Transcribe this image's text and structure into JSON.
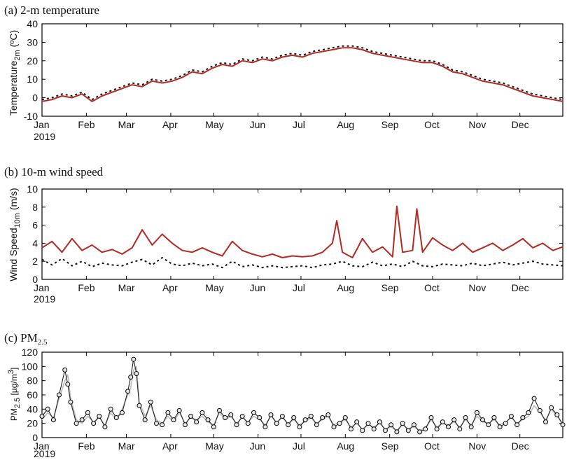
{
  "panels": [
    {
      "title": "(a) 2-m temperature",
      "ylabel_main": "Temperature",
      "ylabel_sub": "2m",
      "ylabel_unit": " (ºC)",
      "year_label": "2019"
    },
    {
      "title": "(b) 10-m wind speed",
      "ylabel_main": "Wind Speed",
      "ylabel_sub": "10m",
      "ylabel_unit": " (m/s)",
      "year_label": "2019"
    },
    {
      "title_main": "(c) PM",
      "title_sub": "2.5",
      "ylabel_main": "PM",
      "ylabel_sub": "2.5",
      "ylabel_unit": " [µg/m",
      "ylabel_sup": "3",
      "ylabel_close": "]",
      "year_label": "2019"
    }
  ],
  "colors": {
    "model_red": "#b22a22",
    "obs_dots": "#111111",
    "model_gray": "#bbbbbb",
    "obs_circle_fill": "#e6e6e6"
  },
  "chart_data": [
    {
      "type": "line",
      "x_unit": "day of year 2019",
      "month_ticks": [
        "Jan",
        "Feb",
        "Mar",
        "Apr",
        "May",
        "Jun",
        "Jul",
        "Aug",
        "Sep",
        "Oct",
        "Nov",
        "Dec"
      ],
      "month_start_days": [
        1,
        32,
        60,
        91,
        121,
        152,
        182,
        213,
        244,
        274,
        305,
        335
      ],
      "ylim": [
        -10,
        40
      ],
      "yticks": [
        "-10",
        "0",
        "10",
        "20",
        "30",
        "40"
      ],
      "series": [
        {
          "style": "red-line",
          "x": [
            1,
            8,
            15,
            22,
            29,
            36,
            43,
            50,
            57,
            64,
            71,
            78,
            85,
            92,
            99,
            106,
            113,
            120,
            127,
            134,
            141,
            148,
            155,
            162,
            169,
            176,
            183,
            190,
            197,
            204,
            211,
            218,
            225,
            232,
            239,
            246,
            253,
            260,
            267,
            274,
            281,
            288,
            295,
            302,
            309,
            316,
            323,
            330,
            337,
            344,
            351,
            358,
            365
          ],
          "values": [
            -2,
            -1,
            1,
            0,
            2,
            -2,
            1,
            3,
            5,
            7,
            6,
            9,
            8,
            9,
            11,
            14,
            13,
            16,
            18,
            17,
            20,
            19,
            21,
            20,
            22,
            23,
            22,
            24,
            25,
            26,
            27,
            27,
            26,
            24,
            23,
            22,
            21,
            20,
            19,
            19,
            17,
            14,
            13,
            11,
            9,
            8,
            7,
            5,
            3,
            1,
            0,
            -1,
            -2
          ]
        },
        {
          "style": "black-dots",
          "x": [
            1,
            8,
            15,
            22,
            29,
            36,
            43,
            50,
            57,
            64,
            71,
            78,
            85,
            92,
            99,
            106,
            113,
            120,
            127,
            134,
            141,
            148,
            155,
            162,
            169,
            176,
            183,
            190,
            197,
            204,
            211,
            218,
            225,
            232,
            239,
            246,
            253,
            260,
            267,
            274,
            281,
            288,
            295,
            302,
            309,
            316,
            323,
            330,
            337,
            344,
            351,
            358,
            365
          ],
          "values": [
            -1,
            0,
            2,
            1,
            3,
            -1,
            2,
            4,
            6,
            8,
            7,
            10,
            9,
            10,
            12,
            15,
            14,
            17,
            19,
            18,
            21,
            20,
            22,
            21,
            23,
            24,
            23,
            25,
            26,
            27,
            28,
            28,
            27,
            25,
            24,
            23,
            22,
            21,
            20,
            20,
            18,
            15,
            14,
            12,
            10,
            9,
            8,
            6,
            4,
            2,
            1,
            0,
            -1
          ]
        }
      ]
    },
    {
      "type": "line",
      "x_unit": "day of year 2019",
      "month_ticks": [
        "Jan",
        "Feb",
        "Mar",
        "Apr",
        "May",
        "Jun",
        "Jul",
        "Aug",
        "Sep",
        "Oct",
        "Nov",
        "Dec"
      ],
      "month_start_days": [
        1,
        32,
        60,
        91,
        121,
        152,
        182,
        213,
        244,
        274,
        305,
        335
      ],
      "ylim": [
        0,
        10
      ],
      "yticks": [
        "0",
        "2",
        "4",
        "6",
        "8",
        "10"
      ],
      "series": [
        {
          "style": "red-line",
          "x": [
            1,
            8,
            15,
            22,
            29,
            36,
            43,
            50,
            57,
            64,
            71,
            78,
            85,
            92,
            99,
            106,
            113,
            120,
            127,
            134,
            141,
            148,
            155,
            162,
            169,
            176,
            183,
            190,
            197,
            204,
            207,
            211,
            218,
            225,
            232,
            239,
            246,
            249,
            253,
            260,
            263,
            267,
            274,
            281,
            288,
            295,
            302,
            309,
            316,
            323,
            330,
            337,
            344,
            351,
            358,
            365
          ],
          "values": [
            3.5,
            4.2,
            3.0,
            4.5,
            3.2,
            3.8,
            3.0,
            3.3,
            2.8,
            3.5,
            5.5,
            3.8,
            5.0,
            4.0,
            3.2,
            3.0,
            3.5,
            3.0,
            2.6,
            4.2,
            3.2,
            2.8,
            2.5,
            2.8,
            2.4,
            2.6,
            2.5,
            2.6,
            3.0,
            4.0,
            6.5,
            3.0,
            2.4,
            4.5,
            3.0,
            3.6,
            2.5,
            8.1,
            3.0,
            3.2,
            7.8,
            3.0,
            4.6,
            3.8,
            3.2,
            4.0,
            3.0,
            3.5,
            4.0,
            3.2,
            3.8,
            4.5,
            3.5,
            4.0,
            3.2,
            3.6
          ]
        },
        {
          "style": "black-dots",
          "x": [
            1,
            8,
            15,
            22,
            29,
            36,
            43,
            50,
            57,
            64,
            71,
            78,
            85,
            92,
            99,
            106,
            113,
            120,
            127,
            134,
            141,
            148,
            155,
            162,
            169,
            176,
            183,
            190,
            197,
            204,
            211,
            218,
            225,
            232,
            239,
            246,
            253,
            260,
            267,
            274,
            281,
            288,
            295,
            302,
            309,
            316,
            323,
            330,
            337,
            344,
            351,
            358,
            365
          ],
          "values": [
            2.2,
            1.6,
            2.3,
            1.5,
            2.0,
            1.4,
            1.8,
            1.6,
            1.5,
            1.9,
            2.2,
            1.6,
            2.4,
            1.7,
            1.5,
            1.8,
            1.5,
            1.7,
            1.3,
            2.0,
            1.4,
            1.6,
            1.3,
            1.5,
            1.3,
            1.4,
            1.5,
            1.3,
            1.6,
            1.7,
            2.0,
            1.5,
            1.4,
            1.9,
            1.5,
            1.7,
            1.4,
            2.0,
            1.5,
            1.4,
            1.7,
            1.6,
            1.5,
            1.8,
            1.5,
            1.7,
            1.9,
            1.6,
            1.8,
            2.0,
            1.7,
            1.6,
            1.5
          ]
        }
      ]
    },
    {
      "type": "line",
      "x_unit": "day of year 2019",
      "month_ticks": [
        "Jan",
        "Feb",
        "Mar",
        "Apr",
        "May",
        "Jun",
        "Jul",
        "Aug",
        "Sep",
        "Oct",
        "Nov",
        "Dec"
      ],
      "month_start_days": [
        1,
        32,
        60,
        91,
        121,
        152,
        182,
        213,
        244,
        274,
        305,
        335
      ],
      "ylim": [
        0,
        120
      ],
      "yticks": [
        "0",
        "20",
        "40",
        "60",
        "80",
        "100",
        "120"
      ],
      "series": [
        {
          "style": "gray-line",
          "x": [
            1,
            5,
            9,
            13,
            17,
            19,
            21,
            25,
            29,
            33,
            37,
            41,
            45,
            49,
            53,
            57,
            61,
            63,
            65,
            67,
            69,
            73,
            77,
            81,
            85,
            89,
            93,
            97,
            101,
            105,
            109,
            113,
            117,
            121,
            125,
            129,
            133,
            137,
            141,
            145,
            149,
            153,
            157,
            161,
            165,
            169,
            173,
            177,
            181,
            185,
            189,
            193,
            197,
            201,
            205,
            209,
            213,
            217,
            221,
            225,
            229,
            233,
            237,
            241,
            245,
            249,
            253,
            257,
            261,
            265,
            269,
            273,
            277,
            281,
            285,
            289,
            293,
            297,
            301,
            305,
            309,
            313,
            317,
            321,
            325,
            329,
            333,
            337,
            341,
            345,
            349,
            353,
            357,
            361,
            365
          ],
          "values": [
            25,
            35,
            28,
            55,
            80,
            88,
            55,
            25,
            20,
            30,
            22,
            28,
            18,
            35,
            25,
            40,
            60,
            70,
            95,
            100,
            50,
            30,
            45,
            25,
            20,
            30,
            22,
            35,
            20,
            28,
            25,
            30,
            22,
            18,
            35,
            25,
            30,
            20,
            28,
            22,
            30,
            25,
            18,
            30,
            22,
            28,
            20,
            25,
            18,
            22,
            28,
            20,
            25,
            30,
            18,
            22,
            25,
            15,
            20,
            12,
            18,
            15,
            20,
            12,
            15,
            10,
            18,
            12,
            15,
            10,
            14,
            25,
            15,
            20,
            18,
            22,
            15,
            25,
            18,
            30,
            22,
            20,
            25,
            18,
            22,
            28,
            20,
            25,
            30,
            45,
            35,
            25,
            40,
            30,
            20
          ]
        },
        {
          "style": "circle-line",
          "x": [
            1,
            5,
            9,
            13,
            17,
            19,
            21,
            25,
            29,
            33,
            37,
            41,
            45,
            49,
            53,
            57,
            61,
            63,
            65,
            67,
            69,
            73,
            77,
            81,
            85,
            89,
            93,
            97,
            101,
            105,
            109,
            113,
            117,
            121,
            125,
            129,
            133,
            137,
            141,
            145,
            149,
            153,
            157,
            161,
            165,
            169,
            173,
            177,
            181,
            185,
            189,
            193,
            197,
            201,
            205,
            209,
            213,
            217,
            221,
            225,
            229,
            233,
            237,
            241,
            245,
            249,
            253,
            257,
            261,
            265,
            269,
            273,
            277,
            281,
            285,
            289,
            293,
            297,
            301,
            305,
            309,
            313,
            317,
            321,
            325,
            329,
            333,
            337,
            341,
            345,
            349,
            353,
            357,
            361,
            365
          ],
          "values": [
            30,
            40,
            25,
            60,
            95,
            75,
            50,
            20,
            25,
            35,
            20,
            30,
            15,
            40,
            28,
            35,
            65,
            85,
            110,
            90,
            45,
            25,
            50,
            20,
            18,
            35,
            25,
            38,
            18,
            30,
            22,
            35,
            25,
            15,
            38,
            28,
            32,
            18,
            30,
            20,
            35,
            28,
            15,
            32,
            20,
            30,
            18,
            28,
            15,
            25,
            30,
            18,
            28,
            32,
            15,
            20,
            28,
            12,
            22,
            10,
            20,
            12,
            22,
            10,
            18,
            8,
            20,
            10,
            18,
            8,
            12,
            28,
            12,
            22,
            15,
            25,
            12,
            28,
            15,
            35,
            25,
            18,
            28,
            15,
            20,
            30,
            18,
            28,
            35,
            55,
            38,
            22,
            42,
            32,
            18
          ]
        }
      ]
    }
  ]
}
